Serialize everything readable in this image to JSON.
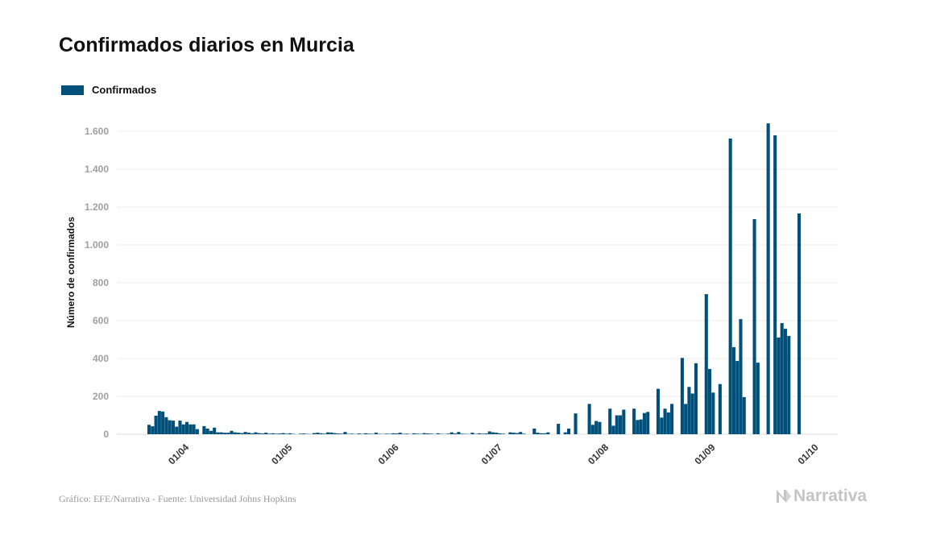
{
  "chart_data": {
    "type": "bar",
    "title": "Confirmados diarios en Murcia",
    "xlabel": "",
    "ylabel": "Número de confirmados",
    "ylim": [
      0,
      1700
    ],
    "yticks": [
      0,
      200,
      400,
      600,
      800,
      1000,
      1200,
      1400,
      1600
    ],
    "ytick_labels": [
      "0",
      "200",
      "400",
      "600",
      "800",
      "1.000",
      "1.200",
      "1.400",
      "1.600"
    ],
    "xtick_labels": [
      "01/04",
      "01/05",
      "01/06",
      "01/07",
      "01/08",
      "01/09",
      "01/10"
    ],
    "grid": "horizontal",
    "legend_position": "top-left",
    "bar_color": "#00507a",
    "series": [
      {
        "name": "Confirmados",
        "points": [
          [
            "24/03",
            50
          ],
          [
            "25/03",
            42
          ],
          [
            "26/03",
            98
          ],
          [
            "27/03",
            123
          ],
          [
            "28/03",
            120
          ],
          [
            "29/03",
            90
          ],
          [
            "30/03",
            74
          ],
          [
            "31/03",
            72
          ],
          [
            "01/04",
            40
          ],
          [
            "02/04",
            72
          ],
          [
            "03/04",
            52
          ],
          [
            "04/04",
            65
          ],
          [
            "05/04",
            52
          ],
          [
            "06/04",
            52
          ],
          [
            "07/04",
            27
          ],
          [
            "08/04",
            0
          ],
          [
            "09/04",
            43
          ],
          [
            "10/04",
            30
          ],
          [
            "11/04",
            18
          ],
          [
            "12/04",
            35
          ],
          [
            "13/04",
            10
          ],
          [
            "14/04",
            10
          ],
          [
            "15/04",
            8
          ],
          [
            "16/04",
            8
          ],
          [
            "17/04",
            18
          ],
          [
            "18/04",
            10
          ],
          [
            "19/04",
            8
          ],
          [
            "20/04",
            6
          ],
          [
            "21/04",
            12
          ],
          [
            "22/04",
            8
          ],
          [
            "23/04",
            5
          ],
          [
            "24/04",
            10
          ],
          [
            "25/04",
            6
          ],
          [
            "26/04",
            4
          ],
          [
            "27/04",
            8
          ],
          [
            "28/04",
            3
          ],
          [
            "29/04",
            5
          ],
          [
            "30/04",
            3
          ],
          [
            "01/05",
            4
          ],
          [
            "02/05",
            6
          ],
          [
            "03/05",
            3
          ],
          [
            "04/05",
            5
          ],
          [
            "05/05",
            2
          ],
          [
            "06/05",
            0
          ],
          [
            "07/05",
            3
          ],
          [
            "08/05",
            4
          ],
          [
            "09/05",
            2
          ],
          [
            "10/05",
            1
          ],
          [
            "11/05",
            6
          ],
          [
            "12/05",
            8
          ],
          [
            "13/05",
            5
          ],
          [
            "14/05",
            3
          ],
          [
            "15/05",
            10
          ],
          [
            "16/05",
            9
          ],
          [
            "17/05",
            6
          ],
          [
            "18/05",
            4
          ],
          [
            "19/05",
            3
          ],
          [
            "20/05",
            12
          ],
          [
            "21/05",
            2
          ],
          [
            "22/05",
            3
          ],
          [
            "23/05",
            1
          ],
          [
            "24/05",
            4
          ],
          [
            "25/05",
            2
          ],
          [
            "26/05",
            5
          ],
          [
            "27/05",
            3
          ],
          [
            "28/05",
            2
          ],
          [
            "29/05",
            8
          ],
          [
            "30/05",
            2
          ],
          [
            "31/05",
            1
          ],
          [
            "01/06",
            3
          ],
          [
            "02/06",
            2
          ],
          [
            "03/06",
            5
          ],
          [
            "04/06",
            4
          ],
          [
            "05/06",
            8
          ],
          [
            "06/06",
            2
          ],
          [
            "07/06",
            3
          ],
          [
            "08/06",
            1
          ],
          [
            "09/06",
            5
          ],
          [
            "10/06",
            3
          ],
          [
            "11/06",
            2
          ],
          [
            "12/06",
            6
          ],
          [
            "13/06",
            4
          ],
          [
            "14/06",
            3
          ],
          [
            "15/06",
            1
          ],
          [
            "16/06",
            5
          ],
          [
            "17/06",
            2
          ],
          [
            "18/06",
            1
          ],
          [
            "19/06",
            3
          ],
          [
            "20/06",
            10
          ],
          [
            "21/06",
            4
          ],
          [
            "22/06",
            12
          ],
          [
            "23/06",
            3
          ],
          [
            "24/06",
            2
          ],
          [
            "25/06",
            1
          ],
          [
            "26/06",
            8
          ],
          [
            "27/06",
            2
          ],
          [
            "28/06",
            5
          ],
          [
            "29/06",
            3
          ],
          [
            "30/06",
            4
          ],
          [
            "01/07",
            15
          ],
          [
            "02/07",
            10
          ],
          [
            "03/07",
            8
          ],
          [
            "04/07",
            5
          ],
          [
            "05/07",
            3
          ],
          [
            "07/07",
            10
          ],
          [
            "08/07",
            8
          ],
          [
            "09/07",
            6
          ],
          [
            "10/07",
            12
          ],
          [
            "11/07",
            3
          ],
          [
            "14/07",
            30
          ],
          [
            "15/07",
            8
          ],
          [
            "16/07",
            5
          ],
          [
            "17/07",
            5
          ],
          [
            "18/07",
            10
          ],
          [
            "21/07",
            55
          ],
          [
            "23/07",
            10
          ],
          [
            "24/07",
            30
          ],
          [
            "26/07",
            110
          ],
          [
            "30/07",
            160
          ],
          [
            "31/07",
            50
          ],
          [
            "01/08",
            70
          ],
          [
            "02/08",
            65
          ],
          [
            "05/08",
            135
          ],
          [
            "06/08",
            45
          ],
          [
            "07/08",
            100
          ],
          [
            "08/08",
            100
          ],
          [
            "09/08",
            130
          ],
          [
            "12/08",
            135
          ],
          [
            "13/08",
            75
          ],
          [
            "14/08",
            78
          ],
          [
            "15/08",
            112
          ],
          [
            "16/08",
            118
          ],
          [
            "19/08",
            240
          ],
          [
            "20/08",
            88
          ],
          [
            "21/08",
            135
          ],
          [
            "22/08",
            115
          ],
          [
            "23/08",
            160
          ],
          [
            "26/08",
            403
          ],
          [
            "27/08",
            160
          ],
          [
            "28/08",
            250
          ],
          [
            "29/08",
            215
          ],
          [
            "30/08",
            375
          ],
          [
            "02/09",
            740
          ],
          [
            "03/09",
            345
          ],
          [
            "04/09",
            220
          ],
          [
            "06/09",
            265
          ],
          [
            "09/09",
            1562
          ],
          [
            "10/09",
            460
          ],
          [
            "11/09",
            387
          ],
          [
            "12/09",
            608
          ],
          [
            "13/09",
            196
          ],
          [
            "16/09",
            1136
          ],
          [
            "17/09",
            378
          ],
          [
            "20/09",
            1642
          ],
          [
            "22/09",
            1579
          ],
          [
            "23/09",
            511
          ],
          [
            "24/09",
            587
          ],
          [
            "25/09",
            557
          ],
          [
            "26/09",
            519
          ],
          [
            "29/09",
            1166
          ]
        ]
      }
    ]
  },
  "footer": {
    "source": "Gráfico: EFE/Narrativa - Fuente: Universidad Johns Hopkins",
    "logo_text": "Narrativa"
  }
}
